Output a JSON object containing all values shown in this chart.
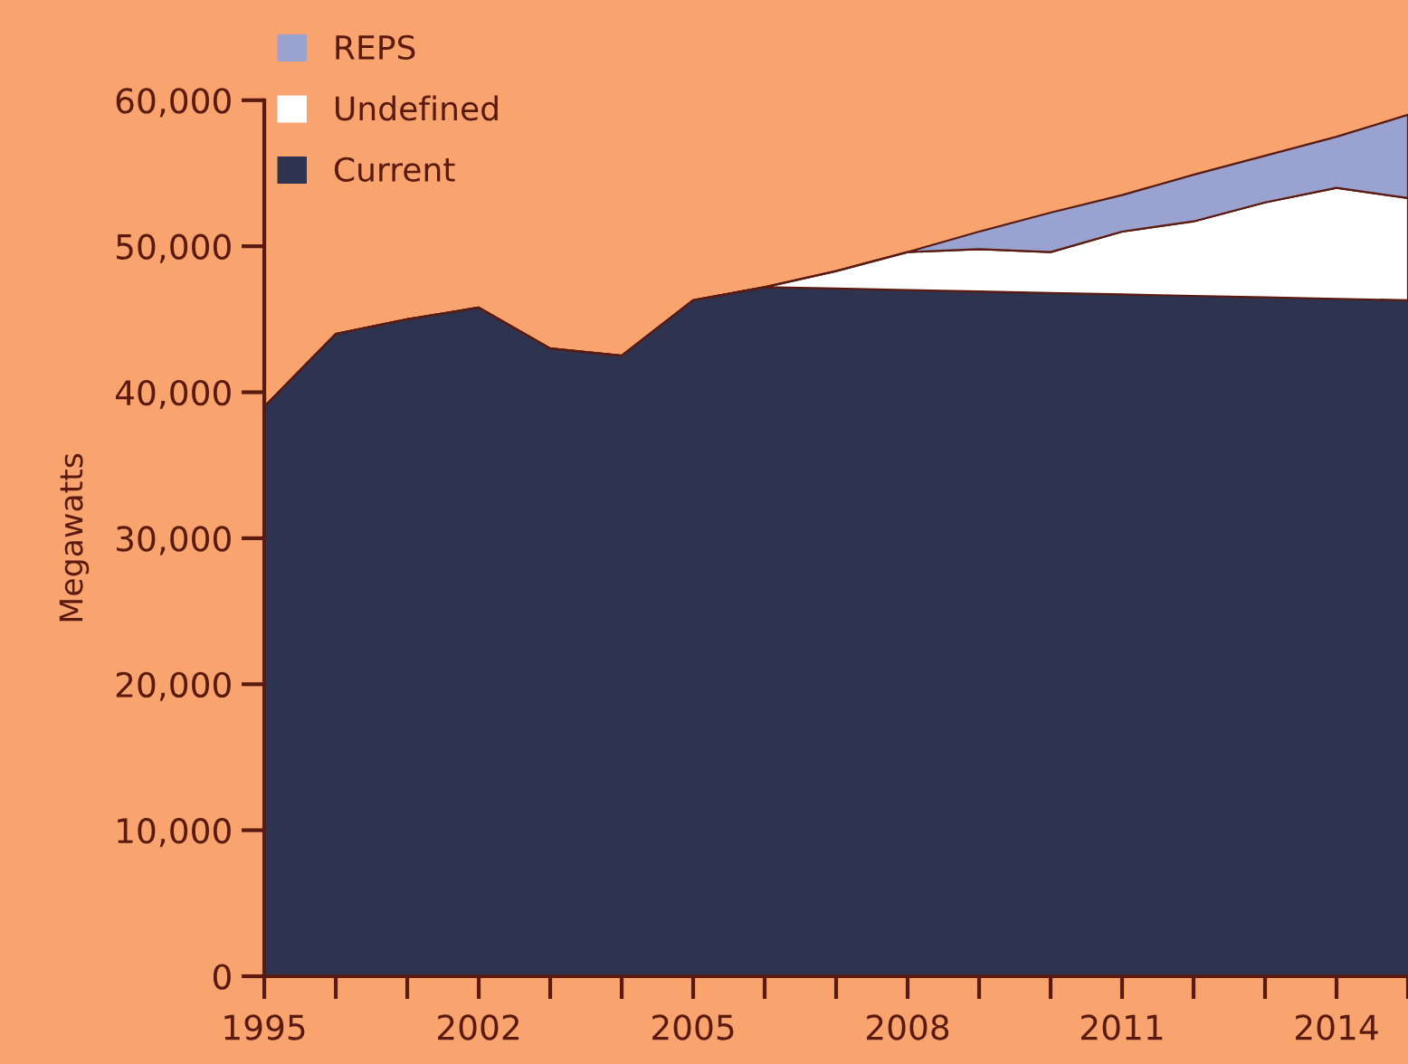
{
  "chart_data": {
    "type": "area",
    "stacked": true,
    "ylabel": "Megawatts",
    "categories": [
      "1995",
      null,
      null,
      "2002",
      null,
      null,
      "2005",
      null,
      null,
      "2008",
      null,
      null,
      "2011",
      null,
      null,
      "2014",
      null
    ],
    "series": [
      {
        "name": "Current",
        "color": "#2e3450",
        "values": [
          39000,
          44000,
          45000,
          45800,
          43000,
          42500,
          46300,
          47200,
          47100,
          47000,
          46900,
          46800,
          46700,
          46600,
          46500,
          46400,
          46300
        ]
      },
      {
        "name": "Undefined",
        "color": "#ffffff",
        "values": [
          0,
          0,
          0,
          0,
          0,
          0,
          0,
          0,
          1200,
          2600,
          2900,
          2800,
          4300,
          5100,
          6500,
          7600,
          7000
        ]
      },
      {
        "name": "REPS",
        "color": "#9aa3d0",
        "values": [
          0,
          0,
          0,
          0,
          0,
          0,
          0,
          0,
          0,
          0,
          1200,
          2700,
          2500,
          3200,
          3200,
          3500,
          5700
        ]
      }
    ],
    "ylim": [
      0,
      60000
    ],
    "yticks": [
      {
        "value": 0,
        "label": "0"
      },
      {
        "value": 10000,
        "label": "10,000"
      },
      {
        "value": 20000,
        "label": "20,000"
      },
      {
        "value": 30000,
        "label": "30,000"
      },
      {
        "value": 40000,
        "label": "40,000"
      },
      {
        "value": 50000,
        "label": "50,000"
      },
      {
        "value": 60000,
        "label": "60,000"
      }
    ],
    "grid": false,
    "legend": "top left"
  }
}
